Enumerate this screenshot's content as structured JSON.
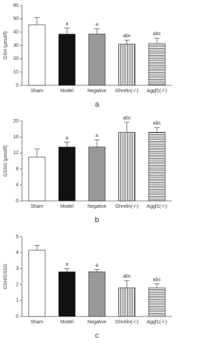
{
  "chart_data": [
    {
      "type": "bar",
      "caption": "a",
      "ylabel": "GSH (μmol/l)",
      "categories": [
        "Sham",
        "Model",
        "Negative",
        "Ghrelin(-/-)",
        "Aggf1(-/-)"
      ],
      "values": [
        45.5,
        38.5,
        38.5,
        31,
        31.5
      ],
      "errors": [
        5.5,
        4.5,
        4,
        3,
        4
      ],
      "annotations": [
        null,
        "a",
        "a",
        "abc",
        "abc"
      ],
      "patterns": [
        "none",
        "solid",
        "grid",
        "vertical",
        "horizontal"
      ],
      "ylim": [
        0,
        60
      ],
      "yticks": [
        0,
        10,
        20,
        30,
        40,
        50,
        60
      ]
    },
    {
      "type": "bar",
      "caption": "b",
      "ylabel": "GSSG (μmol/l)",
      "categories": [
        "Sham",
        "Model",
        "Negative",
        "Ghrelin(-/-)",
        "Aggf1(-/-)"
      ],
      "values": [
        11,
        13.5,
        13.5,
        17.2,
        17.2
      ],
      "errors": [
        2,
        1.2,
        1.8,
        2.5,
        1.2
      ],
      "annotations": [
        null,
        "a",
        "a",
        "abc",
        "abc"
      ],
      "patterns": [
        "none",
        "solid",
        "grid",
        "vertical",
        "horizontal"
      ],
      "ylim": [
        0,
        20
      ],
      "yticks": [
        0,
        4,
        8,
        12,
        16,
        20
      ]
    },
    {
      "type": "bar",
      "caption": "c",
      "ylabel": "GSH/GSSG",
      "categories": [
        "Sham",
        "Model",
        "Negative",
        "Ghrelin(-/-)",
        "Aggf1(-/-)"
      ],
      "values": [
        4.15,
        2.8,
        2.8,
        1.8,
        1.8
      ],
      "errors": [
        0.3,
        0.2,
        0.15,
        0.45,
        0.25
      ],
      "annotations": [
        null,
        "a",
        "a",
        "abc",
        "abc"
      ],
      "patterns": [
        "none",
        "solid",
        "grid",
        "vertical",
        "horizontal"
      ],
      "ylim": [
        0,
        5
      ],
      "yticks": [
        0,
        1,
        2,
        3,
        4,
        5
      ]
    }
  ]
}
